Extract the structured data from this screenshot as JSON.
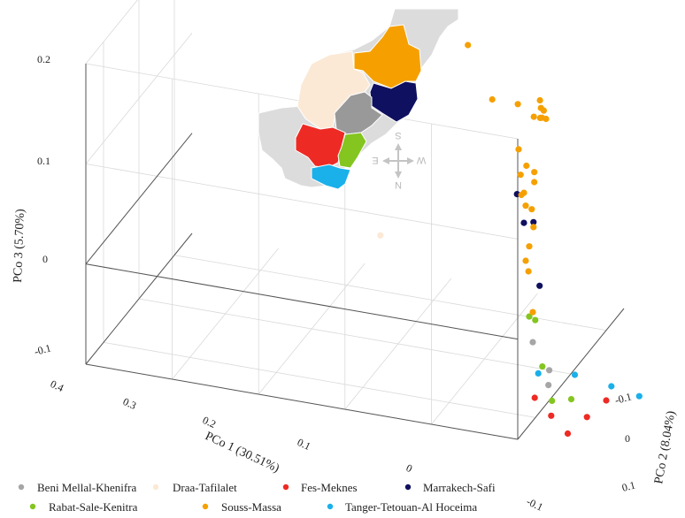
{
  "chart_data": {
    "type": "scatter",
    "projection": "3d",
    "axes": {
      "x": {
        "label": "PCo 1 (30.51%)",
        "ticks": [
          "0.4",
          "0.3",
          "0.2",
          "0.1",
          "0",
          "-0.1"
        ]
      },
      "y": {
        "label": "PCo 2 (8.04%)",
        "ticks": [
          "-0.1",
          "0",
          "0.1"
        ]
      },
      "z": {
        "label": "PCo 3 (5.70%)",
        "ticks": [
          "0.2",
          "0.1",
          "0",
          "-0.1"
        ]
      }
    },
    "grid": true,
    "legend_position": "bottom",
    "series": [
      {
        "name": "Beni Mellal-Khenifra",
        "color": "#a6a6a6",
        "points": [
          [
            -0.06,
            -0.01,
            -0.07
          ],
          [
            -0.075,
            0.0,
            -0.1
          ],
          [
            -0.07,
            0.01,
            -0.12
          ]
        ]
      },
      {
        "name": "Draa-Tafilalet",
        "color": "#fbe9d6",
        "points": [
          [
            0.1,
            -0.05,
            0.03
          ]
        ]
      },
      {
        "name": "Fes-Meknes",
        "color": "#ee2a24",
        "points": [
          [
            -0.05,
            0.02,
            -0.14
          ],
          [
            -0.065,
            0.03,
            -0.16
          ],
          [
            -0.08,
            0.04,
            -0.18
          ],
          [
            -0.09,
            0.07,
            -0.175
          ],
          [
            -0.1,
            0.1,
            -0.17
          ]
        ]
      },
      {
        "name": "Marrakech-Safi",
        "color": "#101060",
        "points": [
          [
            -0.05,
            -0.03,
            0.085
          ],
          [
            -0.06,
            -0.035,
            0.06
          ],
          [
            -0.065,
            -0.02,
            0.055
          ],
          [
            -0.07,
            -0.015,
            -0.01
          ]
        ]
      },
      {
        "name": "Rabat-Sale-Kenitra",
        "color": "#84c520",
        "points": [
          [
            -0.06,
            -0.02,
            -0.04
          ],
          [
            -0.065,
            -0.015,
            -0.045
          ],
          [
            -0.065,
            0.005,
            -0.1
          ],
          [
            -0.07,
            0.02,
            -0.14
          ],
          [
            -0.08,
            0.05,
            -0.15
          ]
        ]
      },
      {
        "name": "Souss-Massa",
        "color": "#f5a000",
        "points": [
          [
            -0.03,
            -0.12,
            0.27
          ],
          [
            -0.05,
            -0.1,
            0.21
          ],
          [
            -0.09,
            -0.08,
            0.19
          ],
          [
            -0.095,
            -0.075,
            0.205
          ],
          [
            -0.1,
            -0.07,
            0.185
          ],
          [
            -0.09,
            -0.06,
            0.19
          ],
          [
            -0.085,
            -0.05,
            0.175
          ],
          [
            -0.085,
            -0.04,
            0.178
          ],
          [
            -0.085,
            -0.045,
            0.173
          ],
          [
            -0.055,
            -0.04,
            0.18
          ],
          [
            -0.06,
            -0.05,
            0.14
          ],
          [
            -0.065,
            -0.04,
            0.12
          ],
          [
            -0.07,
            -0.03,
            0.11
          ],
          [
            -0.07,
            -0.03,
            0.1
          ],
          [
            -0.05,
            -0.02,
            0.1
          ],
          [
            -0.055,
            -0.03,
            0.085
          ],
          [
            -0.06,
            -0.035,
            0.09
          ],
          [
            -0.06,
            -0.03,
            0.075
          ],
          [
            -0.065,
            -0.025,
            0.07
          ],
          [
            -0.065,
            -0.02,
            0.05
          ],
          [
            -0.06,
            -0.02,
            0.03
          ],
          [
            -0.06,
            -0.03,
            0.02
          ],
          [
            -0.055,
            -0.01,
            0.0
          ],
          [
            -0.06,
            -0.01,
            -0.04
          ]
        ]
      },
      {
        "name": "Tanger-Tetouan-Al Hoceima",
        "color": "#1ab0ea",
        "points": [
          [
            -0.05,
            0.03,
            -0.12
          ],
          [
            -0.08,
            0.06,
            -0.13
          ],
          [
            -0.11,
            0.09,
            -0.15
          ],
          [
            -0.13,
            0.12,
            -0.17
          ]
        ]
      }
    ]
  },
  "legend_layout": [
    {
      "name": "Beni Mellal-Khenifra",
      "color": "#a6a6a6"
    },
    {
      "name": "Draa-Tafilalet",
      "color": "#fbe9d6"
    },
    {
      "name": "Fes-Meknes",
      "color": "#ee2a24"
    },
    {
      "name": "Marrakech-Safi",
      "color": "#101060"
    },
    {
      "name": "Rabat-Sale-Kenitra",
      "color": "#84c520"
    },
    {
      "name": "Souss-Massa",
      "color": "#f5a000"
    },
    {
      "name": "Tanger-Tetouan-Al Hoceima",
      "color": "#1ab0ea"
    }
  ],
  "inset_map": {
    "compass": {
      "s": "S",
      "e": "E",
      "w": "W",
      "n": "N"
    },
    "colors": {
      "background": "#dcdcdc",
      "beni_mellal": "#999999",
      "draa": "#fbe9d6",
      "fes": "#ee2a24",
      "marrakech": "#101060",
      "rabat": "#84c520",
      "souss": "#f5a000",
      "tanger": "#1ab0ea"
    }
  }
}
